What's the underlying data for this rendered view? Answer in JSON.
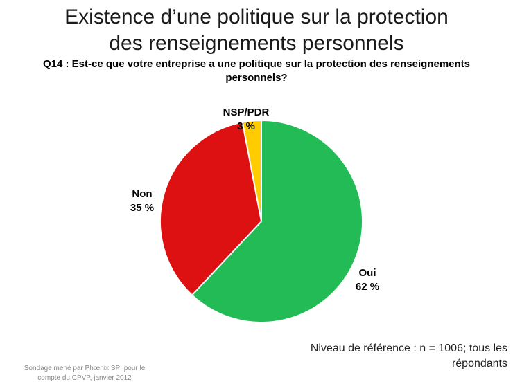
{
  "title_line1": "Existence d’une politique sur la protection",
  "title_line2": "des renseignements personnels",
  "question_line1": "Q14 : Est-ce que votre entreprise a une politique sur la protection des renseignements",
  "question_line2": "personnels?",
  "chart_data": {
    "type": "pie",
    "slices": [
      {
        "name": "NSP/PDR",
        "value_label": "3 %",
        "value": 3,
        "color": "#ffcc00"
      },
      {
        "name": "Oui",
        "value_label": "62 %",
        "value": 62,
        "color": "#22bb55"
      },
      {
        "name": "Non",
        "value_label": "35 %",
        "value": 35,
        "color": "#dd1111"
      }
    ]
  },
  "footnote_line1": "Niveau de référence : n = 1006; tous les",
  "footnote_line2": "répondants",
  "source_line1": "Sondage mené par Phœnix SPI pour le",
  "source_line2": "compte du CPVP, janvier 2012"
}
